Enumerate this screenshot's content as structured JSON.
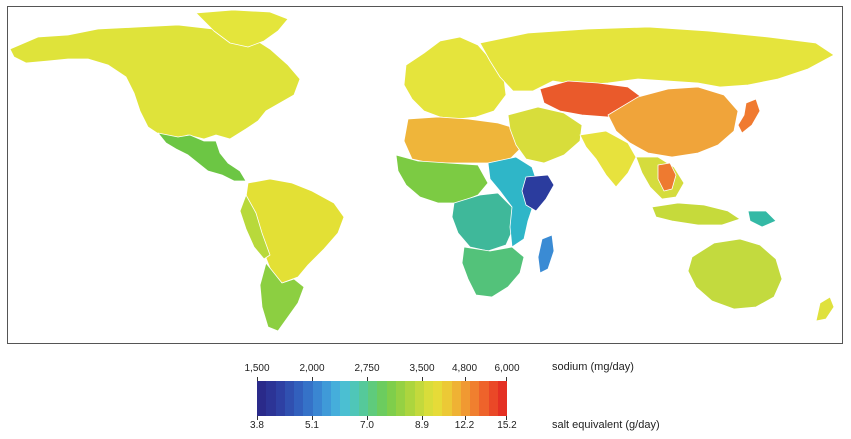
{
  "map": {
    "colors": {
      "north_america": "#dfe33a",
      "greenland": "#e4e53b",
      "central_america": "#6cc644",
      "south_america": "#e3e035",
      "south_america_west": "#b8d93b",
      "south_america_south": "#8ccf41",
      "europe": "#e5e43c",
      "russia": "#e5e43c",
      "north_africa": "#efb53a",
      "west_africa": "#7ccb43",
      "central_africa": "#3fb89a",
      "east_africa": "#2fb6c8",
      "horn": "#2b3c9e",
      "southern_africa": "#53c27a",
      "madagascar": "#3a8bd4",
      "middle_east": "#d8dd3b",
      "central_asia": "#ea5a2b",
      "china": "#f0a43a",
      "japan": "#f07a30",
      "india": "#e7e23d",
      "southeast_asia": "#d5dc3d",
      "thailand": "#ee7a30",
      "indonesia": "#c6da3b",
      "png": "#34b9a5",
      "australia": "#c3da3e",
      "new_zealand": "#dfe13d"
    }
  },
  "legend": {
    "sodium_title": "sodium (mg/day)",
    "salt_title": "salt equivalent (g/day)",
    "sodium_ticks": [
      {
        "label": "1,500",
        "frac": 0.0
      },
      {
        "label": "2,000",
        "frac": 0.22
      },
      {
        "label": "2,750",
        "frac": 0.44
      },
      {
        "label": "3,500",
        "frac": 0.66
      },
      {
        "label": "4,800",
        "frac": 0.83
      },
      {
        "label": "6,000",
        "frac": 1.0
      }
    ],
    "salt_ticks": [
      {
        "label": "3.8",
        "frac": 0.0
      },
      {
        "label": "5.1",
        "frac": 0.22
      },
      {
        "label": "7.0",
        "frac": 0.44
      },
      {
        "label": "8.9",
        "frac": 0.66
      },
      {
        "label": "12.2",
        "frac": 0.83
      },
      {
        "label": "15.2",
        "frac": 1.0
      }
    ],
    "colors": [
      "#2a2a8a",
      "#2c3496",
      "#2e40a3",
      "#3050b0",
      "#3260bd",
      "#3572c8",
      "#3a86d2",
      "#3f9ad8",
      "#45aedb",
      "#4bbfd2",
      "#4fc6b8",
      "#55c99a",
      "#5fcb7c",
      "#6ccc5f",
      "#7fce4b",
      "#95d143",
      "#acd53e",
      "#c3d93c",
      "#d8dd3a",
      "#e6db38",
      "#ecc936",
      "#efb234",
      "#f09932",
      "#f07f2f",
      "#ee632b",
      "#ea4827",
      "#e43023"
    ]
  }
}
